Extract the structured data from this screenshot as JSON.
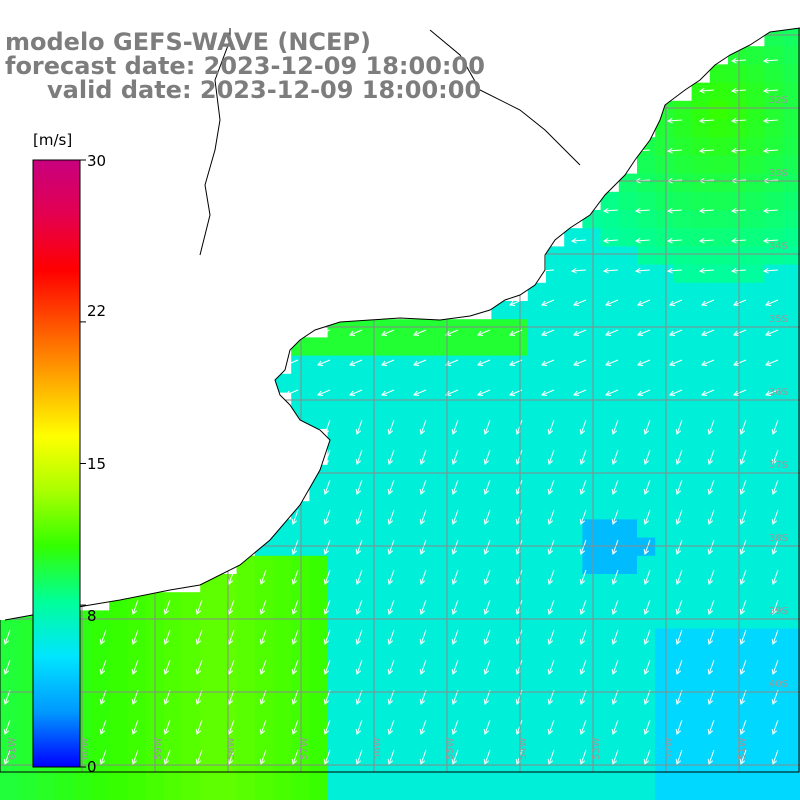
{
  "title": {
    "line1": "modelo GEFS-WAVE (NCEP)",
    "line2": "forecast date: 2023-12-09 18:00:00",
    "line3": "valid date: 2023-12-09 18:00:00"
  },
  "colorbar": {
    "unit": "[m/s]",
    "ticks": [
      "30",
      "22",
      "15",
      "8",
      "0"
    ],
    "tick_values": [
      30,
      22,
      15,
      8,
      0
    ],
    "range": [
      0,
      30
    ],
    "colors": [
      "#0000ff",
      "#0099ff",
      "#00e5ff",
      "#00ff99",
      "#33ff00",
      "#aaff00",
      "#ffff00",
      "#ffaa00",
      "#ff5500",
      "#ff0000",
      "#e4004f",
      "#c8007f"
    ]
  },
  "lat_labels": [
    "32S",
    "33S",
    "34S",
    "35S",
    "36S",
    "37S",
    "38S",
    "39S",
    "40S"
  ],
  "lon_labels": [
    "61W",
    "60W",
    "59W",
    "58W",
    "57W",
    "56W",
    "55W",
    "54W",
    "53W",
    "52W",
    "51W",
    "50W"
  ],
  "chart_data": {
    "type": "heatmap",
    "variable": "wind speed",
    "unit": "m/s",
    "scale_range": [
      0,
      30
    ],
    "typical_values": {
      "open_ocean": 6.5,
      "coastal_band_north": 11,
      "rio_de_la_plata": 10,
      "southwest_shelf": 12,
      "eddy_minimum": 4
    },
    "wind_direction": "toward southwest"
  },
  "colors": {
    "ocean_low": "#1a8cff",
    "ocean_mid": "#00e0ff",
    "ocean_high": "#00ff55",
    "land": "#ffffff",
    "grid": "#8a8a8a",
    "title": "#7d7d7d"
  }
}
